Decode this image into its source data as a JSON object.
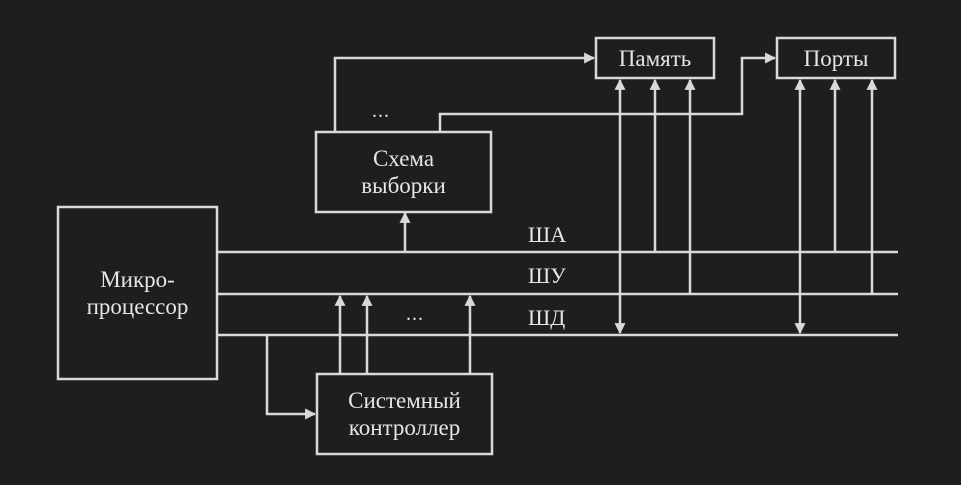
{
  "colors": {
    "background": "#1e1e1e",
    "stroke": "#d9d9d9",
    "text": "#e6e6e6"
  },
  "blocks": {
    "microprocessor": {
      "line1": "Микро-",
      "line2": "процессор"
    },
    "selection_circuit": {
      "line1": "Схема",
      "line2": "выборки"
    },
    "system_controller": {
      "line1": "Системный",
      "line2": "контроллер"
    },
    "memory": {
      "label": "Память"
    },
    "ports": {
      "label": "Порты"
    }
  },
  "buses": {
    "address": "ША",
    "control": "ШУ",
    "data": "ШД"
  },
  "ellipses": {
    "selection_outputs": "...",
    "controller_inputs": "..."
  }
}
